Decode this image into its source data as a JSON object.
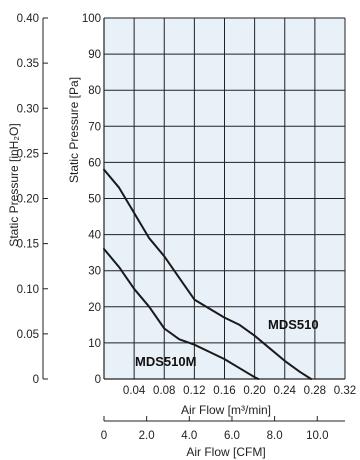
{
  "chart_data": {
    "type": "line",
    "grid": true,
    "plot_background": "#e8f0f8",
    "line_color": "#1a1a1a",
    "x_primary": {
      "label": "Air Flow [m³/min]",
      "range": [
        0,
        0.32
      ],
      "ticks": [
        "0.04",
        "0.08",
        "0.12",
        "0.16",
        "0.20",
        "0.24",
        "0.28",
        "0.32"
      ]
    },
    "x_secondary": {
      "label": "Air Flow [CFM]",
      "range": [
        0,
        11.3
      ],
      "ticks": [
        "0",
        "2.0",
        "4.0",
        "6.0",
        "8.0",
        "10.0"
      ]
    },
    "y_primary": {
      "label": "Static Pressure [Pa]",
      "range": [
        0,
        100
      ],
      "ticks": [
        "0",
        "10",
        "20",
        "30",
        "40",
        "50",
        "60",
        "70",
        "80",
        "90",
        "100"
      ]
    },
    "y_secondary": {
      "label": "Static Pressure [inH₂O]",
      "range": [
        0,
        0.4
      ],
      "ticks": [
        "0",
        "0.05",
        "0.10",
        "0.15",
        "0.20",
        "0.25",
        "0.30",
        "0.35",
        "0.40"
      ]
    },
    "series": [
      {
        "name": "MDS510",
        "x": [
          0,
          0.02,
          0.04,
          0.06,
          0.08,
          0.1,
          0.12,
          0.14,
          0.16,
          0.18,
          0.2,
          0.22,
          0.24,
          0.26,
          0.275
        ],
        "y": [
          58,
          53,
          46,
          39,
          34,
          28,
          22,
          19.5,
          17,
          15,
          12,
          8.5,
          5,
          2,
          0
        ]
      },
      {
        "name": "MDS510M",
        "x": [
          0,
          0.02,
          0.04,
          0.06,
          0.08,
          0.1,
          0.12,
          0.14,
          0.16,
          0.18,
          0.2,
          0.205
        ],
        "y": [
          36,
          31,
          25,
          20,
          14,
          11,
          9.5,
          7.5,
          5.5,
          3,
          0.5,
          0
        ]
      }
    ]
  }
}
